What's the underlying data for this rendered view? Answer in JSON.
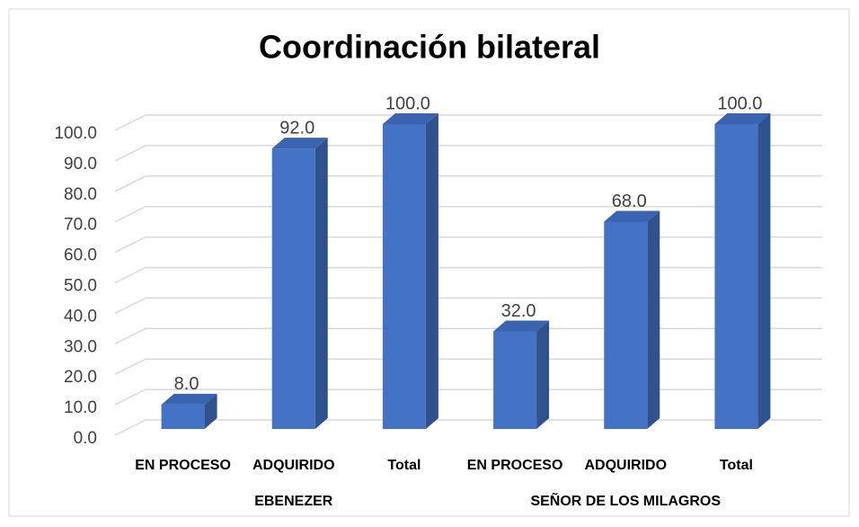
{
  "chart_data": {
    "type": "bar3d",
    "title": "Coordinación bilateral",
    "categories": [
      "EN PROCESO",
      "ADQUIRIDO",
      "Total",
      "EN PROCESO",
      "ADQUIRIDO",
      "Total"
    ],
    "groups": [
      "EBENEZER",
      "SEÑOR DE LOS MILAGROS"
    ],
    "values": [
      8,
      92,
      100,
      32,
      68,
      100
    ],
    "value_labels": [
      "8.0",
      "92.0",
      "100.0",
      "32.0",
      "68.0",
      "100.0"
    ],
    "color": "#4472c4",
    "ylim": [
      0,
      100
    ],
    "yticks": [
      {
        "value": 0,
        "label": "0.0"
      },
      {
        "value": 10,
        "label": "10.0"
      },
      {
        "value": 20,
        "label": "20.0"
      },
      {
        "value": 30,
        "label": "30.0"
      },
      {
        "value": 40,
        "label": "40.0"
      },
      {
        "value": 50,
        "label": "50.0"
      },
      {
        "value": 60,
        "label": "60.0"
      },
      {
        "value": 70,
        "label": "70.0"
      },
      {
        "value": 80,
        "label": "80.0"
      },
      {
        "value": 90,
        "label": "90.0"
      },
      {
        "value": 100,
        "label": "100.0"
      }
    ],
    "grid": true
  }
}
